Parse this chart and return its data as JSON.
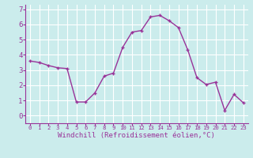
{
  "x": [
    0,
    1,
    2,
    3,
    4,
    5,
    6,
    7,
    8,
    9,
    10,
    11,
    12,
    13,
    14,
    15,
    16,
    17,
    18,
    19,
    20,
    21,
    22,
    23
  ],
  "y": [
    3.6,
    3.5,
    3.3,
    3.15,
    3.1,
    0.9,
    0.9,
    1.5,
    2.6,
    2.8,
    4.5,
    5.5,
    5.6,
    6.5,
    6.6,
    6.25,
    5.8,
    4.35,
    2.5,
    2.05,
    2.2,
    0.35,
    1.4,
    0.85
  ],
  "line_color": "#993399",
  "marker_color": "#993399",
  "bg_color": "#cbecec",
  "grid_color": "#ffffff",
  "xlabel": "Windchill (Refroidissement éolien,°C)",
  "xlim": [
    -0.5,
    23.5
  ],
  "ylim": [
    -0.5,
    7.3
  ],
  "yticks": [
    0,
    1,
    2,
    3,
    4,
    5,
    6,
    7
  ],
  "xticks": [
    0,
    1,
    2,
    3,
    4,
    5,
    6,
    7,
    8,
    9,
    10,
    11,
    12,
    13,
    14,
    15,
    16,
    17,
    18,
    19,
    20,
    21,
    22,
    23
  ],
  "xlabel_fontsize": 6.5,
  "tick_fontsize": 6.5,
  "axis_color": "#993399",
  "spine_color": "#993399"
}
